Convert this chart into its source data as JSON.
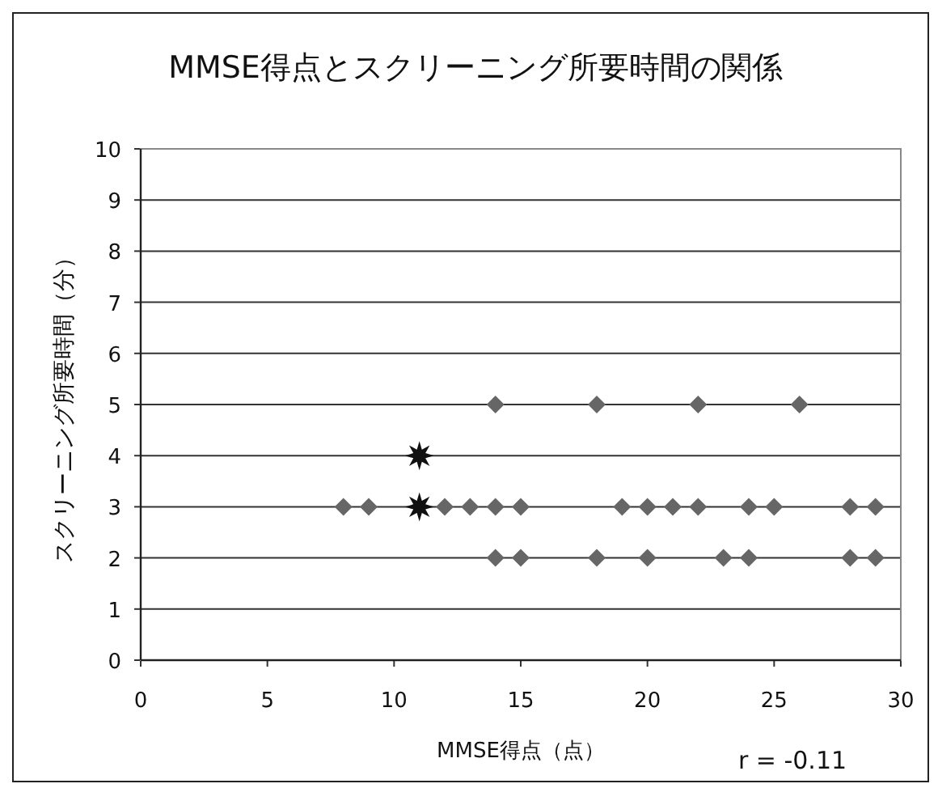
{
  "chart_data": {
    "type": "scatter",
    "title": "MMSE得点とスクリーニング所要時間の関係",
    "xlabel": "MMSE得点（点）",
    "ylabel": "スクリーニング所要時間（分）",
    "xlim": [
      0,
      30
    ],
    "xticks": [
      0,
      5,
      10,
      15,
      20,
      25,
      30
    ],
    "ylim": [
      0,
      10
    ],
    "yticks": [
      0,
      1,
      2,
      3,
      4,
      5,
      6,
      7,
      8,
      9,
      10
    ],
    "grid": "y",
    "series": [
      {
        "color": "#666666",
        "marker": "diamond",
        "x": [
          14,
          18,
          22,
          26,
          8,
          9,
          12,
          13,
          14,
          15,
          19,
          20,
          21,
          22,
          24,
          25,
          28,
          29,
          14,
          15,
          18,
          20,
          23,
          24,
          28,
          29
        ],
        "values": [
          5,
          5,
          5,
          5,
          3,
          3,
          3,
          3,
          3,
          3,
          3,
          3,
          3,
          3,
          3,
          3,
          3,
          3,
          2,
          2,
          2,
          2,
          2,
          2,
          2,
          2
        ]
      },
      {
        "color": "#111111",
        "marker": "star",
        "x": [
          11,
          11
        ],
        "values": [
          4,
          3
        ]
      }
    ],
    "annotations": [
      "r = -0.11"
    ]
  }
}
